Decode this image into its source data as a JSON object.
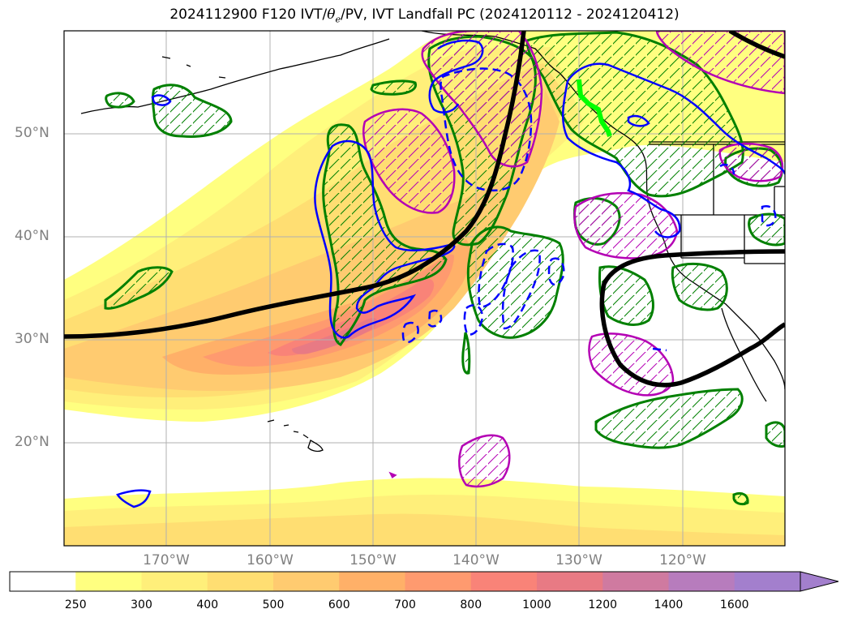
{
  "title": {
    "prefix": "2024112900 F120 IVT/",
    "theta": "θ",
    "theta_sub": "e",
    "suffix": "/PV, IVT Landfall PC (2024120112 - 2024120412)"
  },
  "axes": {
    "lat_labels": [
      "50°N",
      "40°N",
      "30°N",
      "20°N"
    ],
    "lon_labels": [
      "170°W",
      "160°W",
      "150°W",
      "140°W",
      "130°W",
      "120°W"
    ]
  },
  "colorbar": {
    "ticks": [
      "250",
      "300",
      "400",
      "500",
      "600",
      "700",
      "800",
      "1000",
      "1200",
      "1400",
      "1600"
    ],
    "colors": [
      "#ffff80",
      "#ffef7a",
      "#ffde72",
      "#ffcb70",
      "#ffb068",
      "#fe9a6f",
      "#f98378",
      "#e87a84",
      "#cf7aa0",
      "#b77cbd",
      "#a37fcd"
    ]
  },
  "style": {
    "coast_color": "#000000",
    "positive_color": "#008000",
    "negative_color": "#0000ff",
    "magenta_color": "#b400b4",
    "jet_color": "#000000",
    "landfall_color": "#00ff00"
  }
}
